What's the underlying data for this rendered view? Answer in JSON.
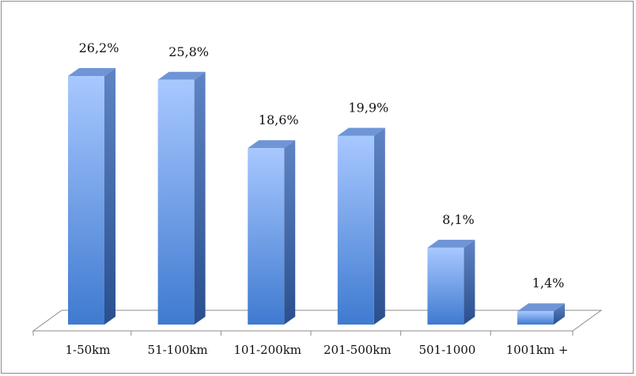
{
  "chart_data": {
    "type": "bar",
    "categories": [
      "1-50km",
      "51-100km",
      "101-200km",
      "201-500km",
      "501-1000",
      "1001km +"
    ],
    "values": [
      26.2,
      25.8,
      18.6,
      19.9,
      8.1,
      1.4
    ],
    "value_labels": [
      "26,2%",
      "25,8%",
      "18,6%",
      "19,9%",
      "8,1%",
      "1,4%"
    ],
    "title": "",
    "xlabel": "",
    "ylabel": "",
    "ylim": [
      0,
      30
    ],
    "grid": false,
    "legend": "none",
    "style": "3d-column",
    "colors": {
      "bar_light": "#a8c8ff",
      "bar_dark": "#3f7ad0",
      "bar_side": "#2f5592",
      "bar_top": "#6f95d6",
      "floor": "#ffffff",
      "floor_stroke": "#8c8c8c"
    }
  }
}
